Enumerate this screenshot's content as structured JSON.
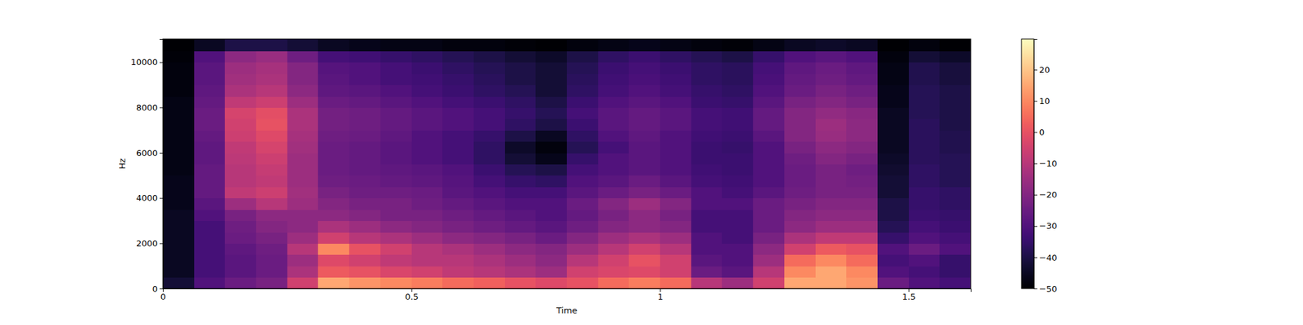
{
  "chart_data": {
    "type": "heatmap",
    "xlabel": "Time",
    "ylabel": "Hz",
    "color": "magma",
    "xlim": [
      0,
      1.625
    ],
    "ylim": [
      0,
      11025
    ],
    "xticks": [
      0,
      0.5,
      1,
      1.5
    ],
    "yticks": [
      0,
      2000,
      4000,
      6000,
      8000,
      10000
    ],
    "zlim": [
      -50,
      29.8
    ],
    "zticks": [
      {
        "value": -50,
        "label": "−50"
      },
      {
        "value": -40,
        "label": "−40"
      },
      {
        "value": -30,
        "label": "−30"
      },
      {
        "value": -20,
        "label": "−20"
      },
      {
        "value": -10,
        "label": "−10"
      },
      0,
      10,
      20
    ],
    "x_bins": [
      0,
      0.0625,
      0.125,
      0.1875,
      0.25,
      0.3125,
      0.375,
      0.4375,
      0.5,
      0.5625,
      0.625,
      0.6875,
      0.75,
      0.8125,
      0.875,
      0.9375,
      1.0,
      1.0625,
      1.125,
      1.1875,
      1.25,
      1.3125,
      1.375,
      1.4375,
      1.5,
      1.5625,
      1.625
    ],
    "y_bins": [
      0,
      500,
      1000,
      1500,
      2000,
      2500,
      3000,
      3500,
      4000,
      4500,
      5000,
      5500,
      6000,
      6500,
      7000,
      7500,
      8000,
      8500,
      9000,
      9500,
      10000,
      10500,
      11025
    ],
    "z": [
      [
        -42,
        -30,
        -25,
        -22,
        -5,
        15,
        12,
        10,
        8,
        5,
        3,
        0,
        -2,
        0,
        5,
        8,
        5,
        -10,
        -15,
        -5,
        15,
        15,
        12,
        -25,
        -30,
        -32
      ],
      [
        -45,
        -32,
        -28,
        -25,
        -12,
        2,
        0,
        -3,
        -5,
        -8,
        -10,
        -12,
        -15,
        -5,
        -3,
        -2,
        -5,
        -25,
        -28,
        -10,
        10,
        15,
        10,
        -30,
        -32,
        -35
      ],
      [
        -45,
        -32,
        -28,
        -25,
        -15,
        -2,
        -5,
        -8,
        -10,
        -10,
        -12,
        -15,
        -18,
        -10,
        -5,
        0,
        -5,
        -28,
        -30,
        -15,
        5,
        10,
        5,
        -32,
        -30,
        -35
      ],
      [
        -45,
        -32,
        -27,
        -24,
        -10,
        10,
        0,
        -5,
        -10,
        -12,
        -15,
        -18,
        -20,
        -15,
        -10,
        -5,
        -10,
        -30,
        -30,
        -18,
        -5,
        2,
        0,
        -30,
        -25,
        -30
      ],
      [
        -45,
        -32,
        -25,
        -22,
        -15,
        -5,
        -10,
        -12,
        -15,
        -18,
        -20,
        -22,
        -25,
        -20,
        -15,
        -12,
        -15,
        -30,
        -32,
        -22,
        -12,
        -8,
        -8,
        -35,
        -30,
        -32
      ],
      [
        -45,
        -32,
        -24,
        -20,
        -18,
        -12,
        -15,
        -18,
        -20,
        -22,
        -24,
        -26,
        -28,
        -24,
        -20,
        -18,
        -20,
        -32,
        -32,
        -25,
        -18,
        -15,
        -15,
        -38,
        -32,
        -34
      ],
      [
        -45,
        -30,
        -22,
        -18,
        -18,
        -18,
        -20,
        -22,
        -22,
        -24,
        -26,
        -28,
        -30,
        -26,
        -22,
        -18,
        -22,
        -32,
        -32,
        -25,
        -20,
        -18,
        -18,
        -40,
        -34,
        -35
      ],
      [
        -46,
        -28,
        -15,
        -10,
        -15,
        -20,
        -22,
        -22,
        -24,
        -26,
        -28,
        -30,
        -30,
        -25,
        -20,
        -15,
        -20,
        -30,
        -30,
        -25,
        -22,
        -20,
        -20,
        -40,
        -35,
        -36
      ],
      [
        -46,
        -26,
        -8,
        -6,
        -14,
        -22,
        -24,
        -24,
        -25,
        -28,
        -30,
        -32,
        -32,
        -28,
        -25,
        -22,
        -25,
        -30,
        -32,
        -28,
        -24,
        -22,
        -22,
        -42,
        -35,
        -36
      ],
      [
        -46,
        -26,
        -10,
        -8,
        -15,
        -24,
        -25,
        -26,
        -27,
        -29,
        -32,
        -35,
        -36,
        -30,
        -28,
        -25,
        -28,
        -32,
        -33,
        -30,
        -25,
        -22,
        -23,
        -42,
        -36,
        -38
      ],
      [
        -47,
        -26,
        -10,
        -7,
        -15,
        -25,
        -26,
        -27,
        -28,
        -30,
        -34,
        -38,
        -40,
        -32,
        -30,
        -28,
        -30,
        -33,
        -34,
        -30,
        -25,
        -22,
        -24,
        -43,
        -36,
        -38
      ],
      [
        -47,
        -27,
        -9,
        -6,
        -15,
        -25,
        -26,
        -28,
        -30,
        -32,
        -36,
        -42,
        -46,
        -35,
        -30,
        -28,
        -30,
        -34,
        -34,
        -30,
        -24,
        -20,
        -22,
        -44,
        -37,
        -38
      ],
      [
        -47,
        -27,
        -8,
        -4,
        -14,
        -25,
        -26,
        -28,
        -30,
        -32,
        -36,
        -44,
        -48,
        -38,
        -32,
        -28,
        -30,
        -34,
        -35,
        -30,
        -22,
        -18,
        -20,
        -45,
        -37,
        -39
      ],
      [
        -47,
        -26,
        -6,
        -2,
        -13,
        -24,
        -25,
        -27,
        -30,
        -32,
        -35,
        -40,
        -45,
        -36,
        -30,
        -27,
        -30,
        -33,
        -34,
        -28,
        -20,
        -16,
        -18,
        -45,
        -37,
        -39
      ],
      [
        -47,
        -25,
        -5,
        0,
        -12,
        -23,
        -24,
        -26,
        -28,
        -30,
        -32,
        -36,
        -40,
        -34,
        -28,
        -26,
        -28,
        -32,
        -33,
        -26,
        -20,
        -15,
        -18,
        -45,
        -37,
        -40
      ],
      [
        -47,
        -25,
        -4,
        -1,
        -12,
        -23,
        -24,
        -26,
        -28,
        -30,
        -32,
        -35,
        -38,
        -32,
        -28,
        -26,
        -28,
        -32,
        -33,
        -26,
        -20,
        -17,
        -19,
        -45,
        -38,
        -40
      ],
      [
        -47,
        -26,
        -8,
        -6,
        -15,
        -25,
        -26,
        -28,
        -30,
        -32,
        -34,
        -36,
        -40,
        -34,
        -30,
        -28,
        -30,
        -34,
        -35,
        -28,
        -22,
        -20,
        -22,
        -46,
        -38,
        -40
      ],
      [
        -48,
        -27,
        -12,
        -10,
        -18,
        -27,
        -28,
        -30,
        -32,
        -34,
        -36,
        -38,
        -42,
        -36,
        -32,
        -30,
        -32,
        -35,
        -36,
        -30,
        -25,
        -22,
        -24,
        -46,
        -38,
        -40
      ],
      [
        -48,
        -28,
        -14,
        -12,
        -20,
        -28,
        -30,
        -32,
        -33,
        -35,
        -37,
        -40,
        -42,
        -37,
        -33,
        -31,
        -33,
        -36,
        -37,
        -31,
        -26,
        -24,
        -26,
        -47,
        -39,
        -41
      ],
      [
        -48,
        -28,
        -15,
        -13,
        -20,
        -29,
        -30,
        -32,
        -34,
        -36,
        -38,
        -40,
        -42,
        -38,
        -34,
        -32,
        -34,
        -36,
        -37,
        -32,
        -27,
        -25,
        -27,
        -47,
        -39,
        -41
      ],
      [
        -49,
        -30,
        -18,
        -16,
        -24,
        -32,
        -33,
        -35,
        -36,
        -38,
        -40,
        -42,
        -44,
        -40,
        -36,
        -34,
        -36,
        -38,
        -40,
        -35,
        -30,
        -28,
        -30,
        -48,
        -42,
        -44
      ],
      [
        -50,
        -45,
        -40,
        -40,
        -42,
        -45,
        -46,
        -47,
        -47,
        -48,
        -48,
        -49,
        -50,
        -48,
        -47,
        -46,
        -47,
        -48,
        -49,
        -47,
        -45,
        -44,
        -45,
        -50,
        -48,
        -50
      ]
    ]
  }
}
